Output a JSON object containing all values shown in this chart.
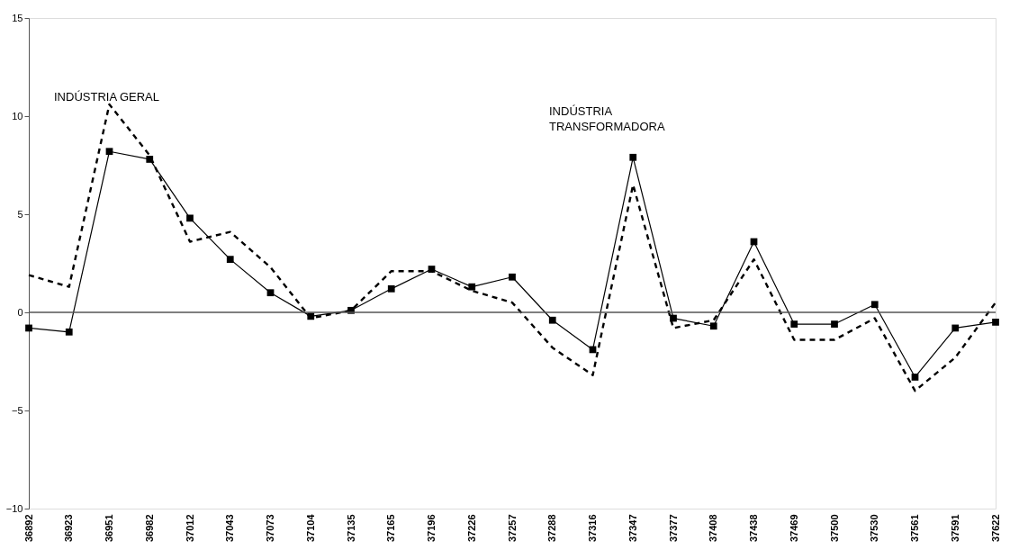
{
  "chart_data": {
    "type": "line",
    "categories": [
      "36892",
      "36923",
      "36951",
      "36982",
      "37012",
      "37043",
      "37073",
      "37104",
      "37135",
      "37165",
      "37196",
      "37226",
      "37257",
      "37288",
      "37316",
      "37347",
      "37377",
      "37408",
      "37438",
      "37469",
      "37500",
      "37530",
      "37561",
      "37591",
      "37622"
    ],
    "series": [
      {
        "color": "#000000",
        "marker": "square",
        "line_style": "solid",
        "values": [
          -0.8,
          -1.0,
          8.2,
          7.8,
          4.8,
          2.7,
          1.0,
          -0.2,
          0.1,
          1.2,
          2.2,
          1.3,
          1.8,
          -0.4,
          -1.9,
          7.9,
          -0.3,
          -0.7,
          3.6,
          -0.6,
          -0.6,
          0.4,
          -3.3,
          -0.8,
          -0.5
        ]
      },
      {
        "color": "#000000",
        "marker": "none",
        "line_style": "dashed",
        "values": [
          1.9,
          1.3,
          10.6,
          8.0,
          3.6,
          4.1,
          2.3,
          -0.3,
          0.1,
          2.1,
          2.1,
          1.1,
          0.5,
          -1.8,
          -3.2,
          6.5,
          -0.8,
          -0.4,
          2.7,
          -1.4,
          -1.4,
          -0.3,
          -4.0,
          -2.3,
          0.5
        ]
      }
    ],
    "ylim": [
      -10,
      15
    ],
    "yticks": [
      -10,
      -5,
      0,
      5,
      10,
      15
    ],
    "grid": false,
    "ref_lines": [
      {
        "axis": "y",
        "value": 0
      }
    ],
    "annotations": [
      "INDÚSTRIA GERAL",
      "INDÚSTRIA\nTRANSFORMADORA"
    ]
  }
}
